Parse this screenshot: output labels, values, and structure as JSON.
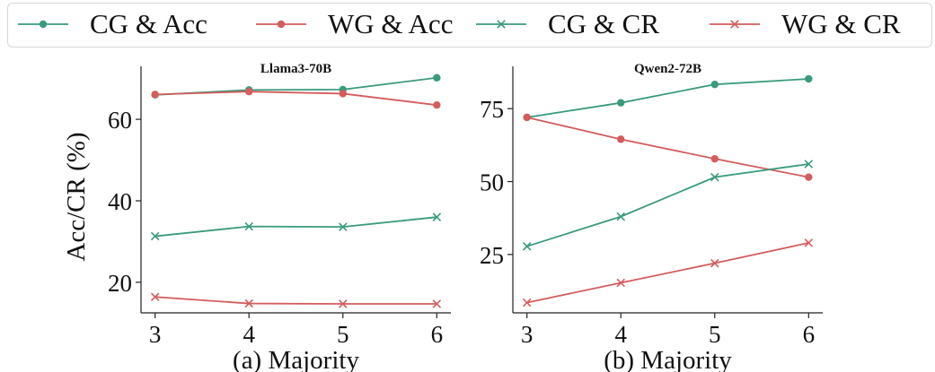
{
  "colors": {
    "green": "#3a9a7e",
    "red": "#d45c5c"
  },
  "legend": [
    {
      "label": "CG & Acc",
      "color": "green",
      "marker": "circle"
    },
    {
      "label": "WG & Acc",
      "color": "red",
      "marker": "circle"
    },
    {
      "label": "CG & CR",
      "color": "green",
      "marker": "x"
    },
    {
      "label": "WG & CR",
      "color": "red",
      "marker": "x"
    }
  ],
  "chart_data": [
    {
      "type": "line",
      "title": "Llama3-70B",
      "xlabel": "(a) Majority",
      "ylabel": "Acc/CR (%)",
      "x": [
        3,
        4,
        5,
        6
      ],
      "xticks": [
        "3",
        "4",
        "5",
        "6"
      ],
      "yticks": [
        "20",
        "40",
        "60"
      ],
      "xlim": [
        2.85,
        6.15
      ],
      "ylim": [
        12.5,
        73
      ],
      "grid": false,
      "series": [
        {
          "name": "CG & Acc",
          "color": "green",
          "marker": "circle",
          "values": [
            66.0,
            67.2,
            67.3,
            70.2
          ]
        },
        {
          "name": "WG & Acc",
          "color": "red",
          "marker": "circle",
          "values": [
            66.1,
            66.8,
            66.3,
            63.5
          ]
        },
        {
          "name": "CG & CR",
          "color": "green",
          "marker": "x",
          "values": [
            31.3,
            33.7,
            33.6,
            36.0
          ]
        },
        {
          "name": "WG & CR",
          "color": "red",
          "marker": "x",
          "values": [
            16.4,
            14.8,
            14.7,
            14.7
          ]
        }
      ]
    },
    {
      "type": "line",
      "title": "Qwen2-72B",
      "xlabel": "(b) Majority",
      "ylabel": "",
      "x": [
        3,
        4,
        5,
        6
      ],
      "xticks": [
        "3",
        "4",
        "5",
        "6"
      ],
      "yticks": [
        "25",
        "50",
        "75"
      ],
      "xlim": [
        2.85,
        6.15
      ],
      "ylim": [
        5,
        89.5
      ],
      "grid": false,
      "series": [
        {
          "name": "CG & Acc",
          "color": "green",
          "marker": "circle",
          "values": [
            72.0,
            77.0,
            83.3,
            85.2
          ]
        },
        {
          "name": "WG & Acc",
          "color": "red",
          "marker": "circle",
          "values": [
            72.0,
            64.5,
            57.8,
            51.5
          ]
        },
        {
          "name": "CG & CR",
          "color": "green",
          "marker": "x",
          "values": [
            27.8,
            38.0,
            51.5,
            56.0
          ]
        },
        {
          "name": "WG & CR",
          "color": "red",
          "marker": "x",
          "values": [
            8.5,
            15.3,
            22.0,
            29.0
          ]
        }
      ]
    }
  ]
}
